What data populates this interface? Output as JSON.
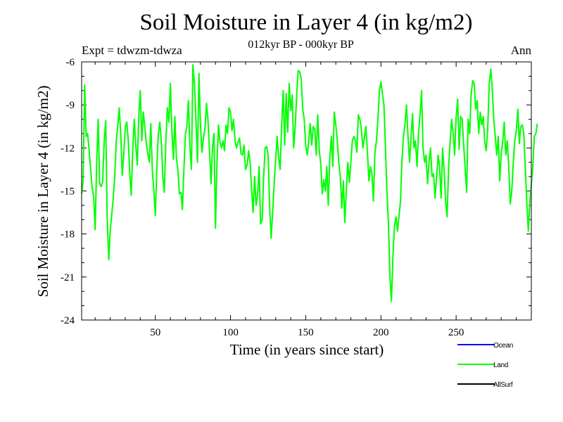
{
  "chart_data": {
    "type": "line",
    "title": "Soil Moisture in Layer 4 (in kg/m2)",
    "subtitle": "012kyr BP - 000kyr BP",
    "expt_label": "Expt = tdwzm-tdwza",
    "season_label": "Ann",
    "xlabel": "Time (in years since start)",
    "ylabel": "Soil Moisture in Layer 4 (in kg/m2)",
    "xlim": [
      1,
      300
    ],
    "ylim": [
      -24,
      -6
    ],
    "x_ticks": [
      50,
      100,
      150,
      200,
      250
    ],
    "y_ticks": [
      -24,
      -21,
      -18,
      -15,
      -12,
      -9,
      -6
    ],
    "grid": false,
    "legend_position": "bottom-right",
    "legend": [
      {
        "name": "Ocean",
        "color": "#0000ff"
      },
      {
        "name": "Land",
        "color": "#00ff00"
      },
      {
        "name": "AllSurf",
        "color": "#000000"
      }
    ],
    "series": [
      {
        "name": "Land",
        "color": "#00ff00",
        "x_start": 1,
        "x_step": 1,
        "values": [
          -15.2,
          -14.3,
          -7.6,
          -11.2,
          -11.0,
          -12.2,
          -13.5,
          -14.8,
          -15.4,
          -17.7,
          -13.0,
          -10.0,
          -14.5,
          -14.7,
          -14.3,
          -11.5,
          -10.1,
          -16.8,
          -19.8,
          -17.8,
          -16.7,
          -15.5,
          -14.0,
          -11.5,
          -10.5,
          -9.2,
          -11.1,
          -13.9,
          -12.5,
          -10.6,
          -10.2,
          -11.5,
          -13.8,
          -15.3,
          -12.0,
          -10.0,
          -11.8,
          -13.2,
          -9.8,
          -8.0,
          -11.5,
          -9.5,
          -10.5,
          -11.7,
          -12.4,
          -13.0,
          -10.3,
          -13.5,
          -15.0,
          -16.7,
          -13.3,
          -11.0,
          -10.2,
          -11.6,
          -14.0,
          -15.1,
          -11.5,
          -9.2,
          -10.2,
          -7.5,
          -10.8,
          -12.8,
          -9.8,
          -12.7,
          -13.5,
          -15.2,
          -15.1,
          -16.3,
          -13.5,
          -11.0,
          -10.5,
          -8.7,
          -12.0,
          -13.5,
          -6.2,
          -7.5,
          -10.0,
          -13.0,
          -6.8,
          -10.3,
          -12.3,
          -11.3,
          -10.7,
          -8.9,
          -10.0,
          -12.2,
          -14.5,
          -12.0,
          -11.0,
          -17.6,
          -13.0,
          -10.4,
          -11.6,
          -12.0,
          -11.5,
          -12.2,
          -10.4,
          -11.0,
          -9.2,
          -9.5,
          -10.8,
          -10.0,
          -11.5,
          -12.0,
          -11.6,
          -11.3,
          -12.4,
          -12.5,
          -11.8,
          -13.5,
          -13.2,
          -12.2,
          -13.0,
          -14.8,
          -16.5,
          -14.0,
          -16.0,
          -15.3,
          -13.3,
          -17.3,
          -17.0,
          -14.1,
          -12.0,
          -11.9,
          -12.5,
          -16.0,
          -18.3,
          -16.5,
          -14.5,
          -12.8,
          -11.2,
          -12.7,
          -13.5,
          -10.5,
          -8.0,
          -11.8,
          -8.2,
          -10.9,
          -7.5,
          -9.4,
          -8.3,
          -12.0,
          -10.5,
          -8.3,
          -6.6,
          -6.7,
          -7.2,
          -9.3,
          -10.0,
          -11.8,
          -12.5,
          -11.5,
          -10.3,
          -11.8,
          -10.5,
          -10.7,
          -12.5,
          -9.7,
          -12.2,
          -13.1,
          -15.2,
          -14.2,
          -15.0,
          -13.3,
          -16.0,
          -12.8,
          -11.2,
          -13.3,
          -9.5,
          -10.4,
          -11.5,
          -13.0,
          -14.0,
          -16.2,
          -14.3,
          -17.2,
          -15.0,
          -13.0,
          -14.4,
          -13.0,
          -11.5,
          -11.2,
          -11.5,
          -12.3,
          -9.7,
          -10.0,
          -10.7,
          -12.0,
          -11.3,
          -10.5,
          -12.3,
          -14.3,
          -13.3,
          -13.8,
          -15.7,
          -12.4,
          -11.5,
          -10.0,
          -8.0,
          -7.4,
          -8.2,
          -9.0,
          -12.0,
          -15.0,
          -17.3,
          -21.0,
          -22.7,
          -19.5,
          -17.5,
          -16.8,
          -17.8,
          -16.8,
          -15.7,
          -12.8,
          -11.2,
          -10.3,
          -9.0,
          -11.2,
          -13.0,
          -11.3,
          -9.6,
          -12.0,
          -11.5,
          -13.3,
          -11.0,
          -9.7,
          -8.0,
          -12.0,
          -13.0,
          -12.5,
          -14.5,
          -13.0,
          -12.0,
          -14.0,
          -13.8,
          -15.5,
          -14.0,
          -12.5,
          -13.3,
          -15.5,
          -12.0,
          -13.5,
          -15.7,
          -16.8,
          -13.3,
          -11.6,
          -10.0,
          -11.0,
          -12.5,
          -9.9,
          -8.6,
          -12.1,
          -9.8,
          -10.0,
          -11.7,
          -13.5,
          -15.1,
          -10.0,
          -11.0,
          -8.3,
          -7.3,
          -7.5,
          -9.3,
          -8.7,
          -11.0,
          -9.5,
          -10.4,
          -9.8,
          -11.5,
          -12.2,
          -10.7,
          -7.5,
          -6.5,
          -7.8,
          -10.0,
          -11.2,
          -12.5,
          -11.2,
          -14.3,
          -12.3,
          -11.5,
          -10.2,
          -12.5,
          -11.5,
          -13.3,
          -15.9,
          -15.0,
          -13.0,
          -11.5,
          -10.8,
          -9.3,
          -11.7,
          -10.5,
          -10.4,
          -11.0,
          -13.5,
          -15.8,
          -17.8,
          -15.8,
          -14.5,
          -13.3,
          -11.2,
          -11.0,
          -10.3
        ]
      },
      {
        "name": "Ocean",
        "color": "#0000ff",
        "values": []
      },
      {
        "name": "AllSurf",
        "color": "#000000",
        "values": []
      }
    ]
  }
}
